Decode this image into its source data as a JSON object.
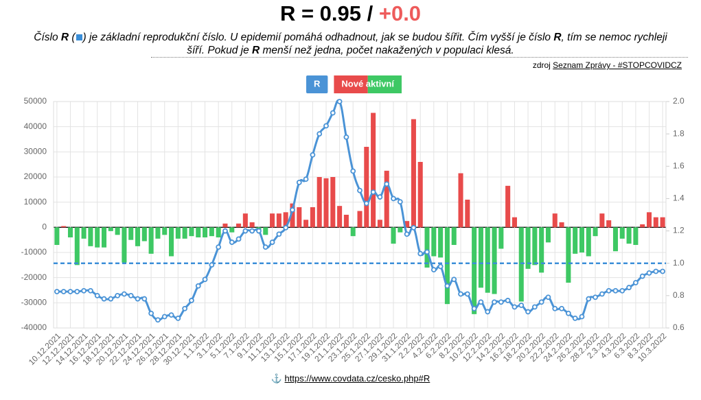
{
  "header": {
    "title": "R  =  0.95 /",
    "title_delta": "+0.0",
    "description": [
      "Číslo ",
      "R",
      " (",
      ")",
      " je základní reprodukční číslo. U epidemií pomáhá odhadnout, jak se budou šířit. Čím vyšší je číslo ",
      "R",
      ", tím se nemoc rychleji šíří. Pokud je ",
      "R",
      " menší než jedna, počet nakažených v populaci klesá."
    ],
    "source_prefix": "zdroj",
    "source_link": "Seznam Zprávy - #STOPCOVIDCZ"
  },
  "footer": {
    "icon": "⚓",
    "link": "https://www.covdata.cz/cesko.php#R"
  },
  "chart_data": {
    "type": "bar",
    "categories": [
      "10.12.2021",
      null,
      "12.12.2021",
      null,
      "14.12.2021",
      null,
      "16.12.2021",
      null,
      "18.12.2021",
      null,
      "20.12.2021",
      null,
      "22.12.2021",
      null,
      "24.12.2021",
      null,
      "26.12.2021",
      null,
      "28.12.2021",
      null,
      "30.12.2021",
      null,
      "1.1.2022",
      null,
      "3.1.2022",
      null,
      "5.1.2022",
      null,
      "7.1.2022",
      null,
      "9.1.2022",
      null,
      "11.1.2022",
      null,
      "13.1.2022",
      null,
      "15.1.2022",
      null,
      "17.1.2022",
      null,
      "19.1.2022",
      null,
      "21.1.2022",
      null,
      "23.1.2022",
      null,
      "25.1.2022",
      null,
      "27.1.2022",
      null,
      "29.1.2022",
      null,
      "31.1.2022",
      null,
      "2.2.2022",
      null,
      "4.2.2022",
      null,
      "6.2.2022",
      null,
      "8.2.2022",
      null,
      "10.2.2022",
      null,
      "12.2.2022",
      null,
      "14.2.2022",
      null,
      "16.2.2022",
      null,
      "18.2.2022",
      null,
      "20.2.2022",
      null,
      "22.2.2022",
      null,
      "24.2.2022",
      null,
      "26.2.2022",
      null,
      "28.2.2022",
      null,
      "2.3.2022",
      null,
      "4.3.2022",
      null,
      "6.3.2022",
      null,
      "8.3.2022",
      null,
      "10.3.2022"
    ],
    "series": [
      {
        "name": "R",
        "type": "line",
        "axis": "y2",
        "color": "#4a93d6",
        "values": [
          0.825,
          0.825,
          0.825,
          0.825,
          0.83,
          0.83,
          0.8,
          0.78,
          0.78,
          0.8,
          0.81,
          0.8,
          0.78,
          0.78,
          0.69,
          0.65,
          0.67,
          0.68,
          0.66,
          0.72,
          0.77,
          0.86,
          0.9,
          0.99,
          1.1,
          1.2,
          1.13,
          1.15,
          1.2,
          1.2,
          1.2,
          1.1,
          1.13,
          1.18,
          1.22,
          1.33,
          1.5,
          1.52,
          1.67,
          1.8,
          1.85,
          1.93,
          2.0,
          1.78,
          1.57,
          1.45,
          1.37,
          1.44,
          1.41,
          1.49,
          1.4,
          1.38,
          1.18,
          1.22,
          1.06,
          1.07,
          0.96,
          0.98,
          0.86,
          0.9,
          0.81,
          0.81,
          0.72,
          0.76,
          0.7,
          0.76,
          0.76,
          0.77,
          0.73,
          0.74,
          0.7,
          0.73,
          0.76,
          0.79,
          0.72,
          0.72,
          0.69,
          0.66,
          0.67,
          0.78,
          0.79,
          0.81,
          0.83,
          0.83,
          0.83,
          0.85,
          0.88,
          0.92,
          0.94,
          0.95,
          0.95
        ]
      },
      {
        "name": "Nové aktivní",
        "type": "bar",
        "axis": "y",
        "color": "#e84b4b",
        "negative_color": "#3ec864",
        "values": [
          -7000,
          500,
          -4000,
          -15000,
          -4500,
          -7500,
          -8000,
          -8000,
          -1500,
          -3000,
          -14000,
          -5000,
          -7500,
          -5500,
          -10500,
          -4500,
          -3000,
          -11500,
          -4500,
          -4500,
          -3500,
          -4000,
          -4000,
          -3500,
          -4000,
          1500,
          -2000,
          1500,
          5500,
          2000,
          -1000,
          -3000,
          5500,
          5500,
          6000,
          9500,
          8000,
          3000,
          8000,
          20000,
          19500,
          20000,
          8500,
          5000,
          -3500,
          6500,
          32000,
          45500,
          3000,
          22500,
          -6500,
          -2000,
          2500,
          43000,
          26000,
          -16000,
          -11500,
          -12000,
          -30500,
          -7000,
          21500,
          11000,
          -34500,
          -24000,
          -26000,
          -26500,
          -8500,
          16500,
          4000,
          -29500,
          -16500,
          -15000,
          -18000,
          -6000,
          5500,
          2000,
          -22000,
          -10500,
          -10000,
          -11500,
          -3500,
          5500,
          2800,
          -9500,
          -4500,
          -6500,
          -7000,
          1200,
          6000,
          4000,
          4000
        ]
      }
    ],
    "ylim": [
      -40000,
      50000
    ],
    "yticks": [
      -40000,
      -30000,
      -20000,
      -10000,
      0,
      10000,
      20000,
      30000,
      40000,
      50000
    ],
    "y2lim": [
      0.6,
      2.0
    ],
    "y2ticks": [
      0.6,
      0.8,
      {
        "value": 1.0,
        "label": "1.0"
      },
      1.2,
      1.4,
      1.6,
      1.8,
      {
        "value": 2.0,
        "label": "2.0"
      }
    ],
    "hline": {
      "axis": "y2",
      "value": 1.0,
      "color": "#3b8ed8"
    },
    "grid": true
  }
}
